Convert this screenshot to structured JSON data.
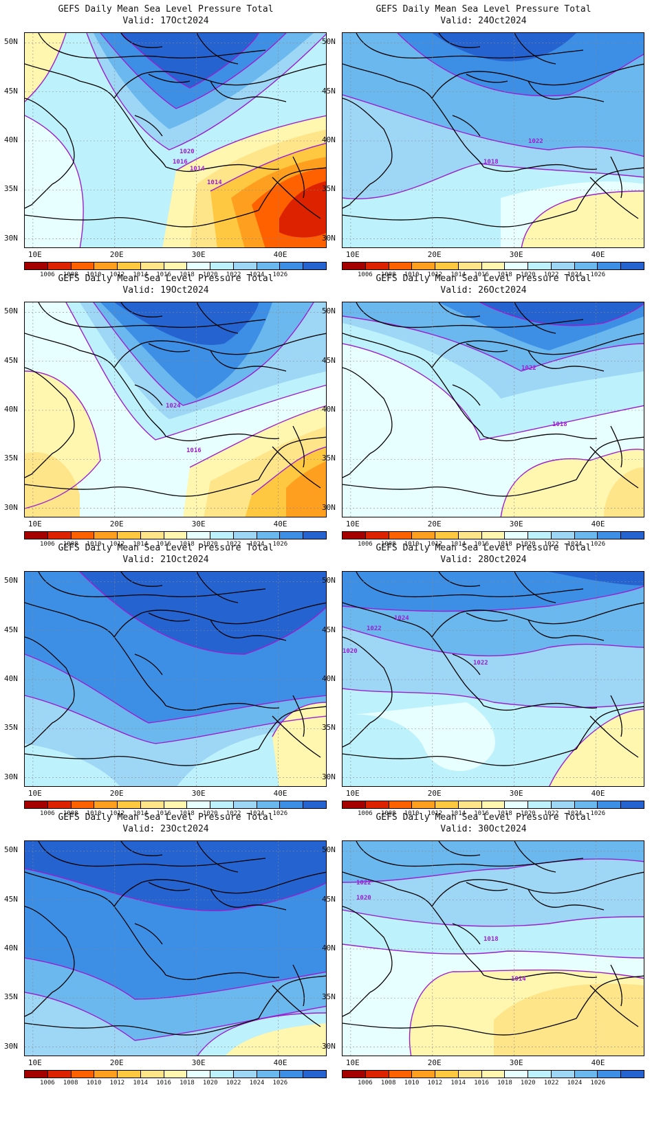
{
  "panels": [
    {
      "title": "GEFS Daily Mean Sea Level Pressure Total",
      "valid": "Valid:  17Oct2024",
      "scenario": "a",
      "isobar_labels": [
        "1020",
        "1016",
        "1014",
        "1014"
      ]
    },
    {
      "title": "GEFS Daily Mean Sea Level Pressure Total",
      "valid": "Valid:  24Oct2024",
      "scenario": "b",
      "isobar_labels": [
        "1022",
        "1018"
      ]
    },
    {
      "title": "GEFS Daily Mean Sea Level Pressure Total",
      "valid": "Valid:  19Oct2024",
      "scenario": "c",
      "isobar_labels": [
        "1024",
        "1016"
      ]
    },
    {
      "title": "GEFS Daily Mean Sea Level Pressure Total",
      "valid": "Valid:  26Oct2024",
      "scenario": "d",
      "isobar_labels": [
        "1022",
        "1018"
      ]
    },
    {
      "title": "GEFS Daily Mean Sea Level Pressure Total",
      "valid": "Valid:  21Oct2024",
      "scenario": "e",
      "isobar_labels": []
    },
    {
      "title": "GEFS Daily Mean Sea Level Pressure Total",
      "valid": "Valid:  28Oct2024",
      "scenario": "f",
      "isobar_labels": [
        "1024",
        "1022",
        "1020",
        "1022"
      ]
    },
    {
      "title": "GEFS Daily Mean Sea Level Pressure Total",
      "valid": "Valid:  23Oct2024",
      "scenario": "g",
      "isobar_labels": []
    },
    {
      "title": "GEFS Daily Mean Sea Level Pressure Total",
      "valid": "Valid:  30Oct2024",
      "scenario": "h",
      "isobar_labels": [
        "1022",
        "1020",
        "1018",
        "1014"
      ]
    }
  ],
  "axes": {
    "lat_labels": [
      "50N",
      "45N",
      "40N",
      "35N",
      "30N"
    ],
    "lon_labels": [
      "10E",
      "20E",
      "30E",
      "40E"
    ]
  },
  "colorbar": {
    "colors": [
      "#a50000",
      "#dd2200",
      "#ff6000",
      "#ff9f20",
      "#ffc840",
      "#ffe58a",
      "#fff6b0",
      "#e8ffff",
      "#bdf1fb",
      "#9ed6f6",
      "#6bb8ef",
      "#3d8fe6",
      "#2563d0"
    ],
    "labels": [
      "1006",
      "1008",
      "1010",
      "1012",
      "1014",
      "1016",
      "1018",
      "1020",
      "1022",
      "1024",
      "1026"
    ]
  },
  "legend_colors": {
    "isobar": "#9a1fd0",
    "coast": "#000000",
    "grid": "#888888"
  }
}
